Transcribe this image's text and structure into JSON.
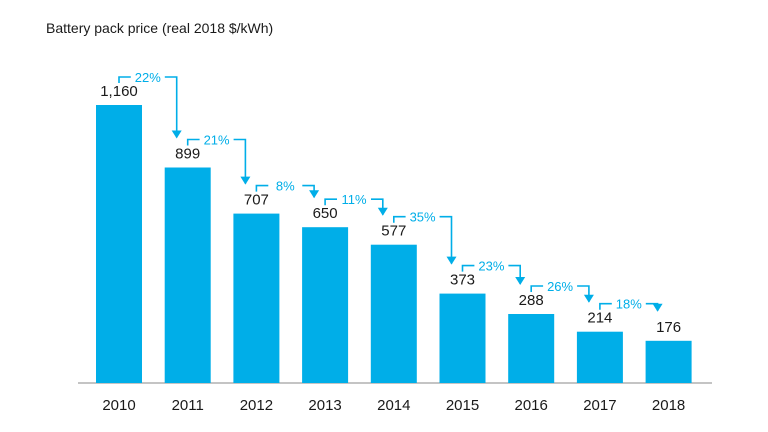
{
  "chart_data": {
    "type": "bar",
    "title": "Battery pack price (real 2018 $/kWh)",
    "categories": [
      "2010",
      "2011",
      "2012",
      "2013",
      "2014",
      "2015",
      "2016",
      "2017",
      "2018"
    ],
    "values": [
      1160,
      899,
      707,
      650,
      577,
      373,
      288,
      214,
      176
    ],
    "value_labels": [
      "1,160",
      "899",
      "707",
      "650",
      "577",
      "373",
      "288",
      "214",
      "176"
    ],
    "annotations": [
      "22%",
      "21%",
      "8%",
      "11%",
      "35%",
      "23%",
      "26%",
      "18%"
    ],
    "ylim": [
      0,
      1250
    ],
    "grid": false,
    "bar_color": "#00aee8",
    "annotation_color": "#00aee8"
  }
}
